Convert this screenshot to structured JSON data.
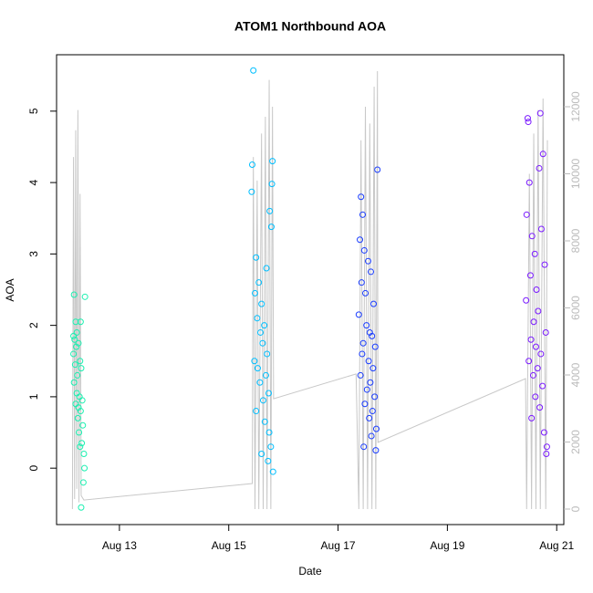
{
  "chart_data": {
    "type": "scatter",
    "title": "ATOM1 Northbound AOA",
    "x_label": "Date",
    "y_label": "AOA",
    "xlim": [
      11.85,
      21.13
    ],
    "xticks": [
      {
        "value": 13,
        "label": "Aug 13"
      },
      {
        "value": 15,
        "label": "Aug 15"
      },
      {
        "value": 17,
        "label": "Aug 17"
      },
      {
        "value": 19,
        "label": "Aug 19"
      },
      {
        "value": 21,
        "label": "Aug 21"
      }
    ],
    "ylim": [
      -0.79,
      5.79
    ],
    "yticks": [
      0,
      1,
      2,
      3,
      4,
      5
    ],
    "y2lim": [
      -463,
      13551
    ],
    "y2ticks": [
      0,
      2000,
      4000,
      6000,
      8000,
      10000,
      12000
    ],
    "series": [
      {
        "type": "line",
        "axis": "y2",
        "color": "#c8c8c8",
        "x": [
          12.14,
          12.16,
          12.18,
          12.2,
          12.22,
          12.24,
          12.26,
          12.28,
          12.3,
          12.35,
          15.43,
          15.45,
          15.48,
          15.52,
          15.55,
          15.6,
          15.63,
          15.67,
          15.7,
          15.74,
          15.77,
          15.8,
          15.82,
          17.33,
          17.38,
          17.42,
          17.46,
          17.5,
          17.54,
          17.58,
          17.62,
          17.66,
          17.69,
          17.72,
          17.73,
          20.43,
          20.45,
          20.5,
          20.54,
          20.58,
          20.62,
          20.66,
          20.7,
          20.75,
          20.8,
          20.83
        ],
        "values": [
          0,
          10500,
          300,
          11300,
          600,
          11900,
          200,
          9400,
          400,
          270,
          760,
          10500,
          0,
          9800,
          0,
          11200,
          0,
          11700,
          0,
          12800,
          0,
          12000,
          3290,
          4030,
          0,
          11000,
          0,
          12000,
          0,
          11500,
          0,
          12600,
          0,
          13060,
          1990,
          3890,
          0,
          10000,
          0,
          11200,
          0,
          11900,
          0,
          12245,
          0,
          11000
        ]
      },
      {
        "type": "scatter",
        "color": "#1AF0B0",
        "x": [
          12.17,
          12.2,
          12.22,
          12.18,
          12.25,
          12.21,
          12.16,
          12.28,
          12.19,
          12.3,
          12.23,
          12.17,
          12.27,
          12.32,
          12.2,
          12.29,
          12.24,
          12.33,
          12.26,
          12.31,
          12.28,
          12.35,
          12.36,
          12.34,
          12.3,
          12.16,
          12.37,
          12.22,
          12.25,
          12.29
        ],
        "values": [
          2.43,
          2.05,
          1.9,
          1.8,
          1.75,
          1.7,
          1.6,
          1.5,
          1.45,
          1.4,
          1.3,
          1.2,
          1.0,
          0.95,
          0.9,
          0.8,
          0.7,
          0.6,
          0.5,
          0.35,
          0.3,
          0.2,
          0.0,
          -0.2,
          -0.55,
          1.85,
          2.4,
          1.05,
          0.85,
          2.05
        ]
      },
      {
        "type": "scatter",
        "color": "#00BFFF",
        "x": [
          15.45,
          15.43,
          15.42,
          15.8,
          15.79,
          15.75,
          15.78,
          15.5,
          15.55,
          15.48,
          15.6,
          15.52,
          15.65,
          15.58,
          15.62,
          15.7,
          15.47,
          15.53,
          15.68,
          15.57,
          15.73,
          15.63,
          15.5,
          15.66,
          15.74,
          15.77,
          15.6,
          15.72,
          15.69,
          15.81
        ],
        "values": [
          5.57,
          4.25,
          3.87,
          4.3,
          3.98,
          3.6,
          3.38,
          2.95,
          2.6,
          2.45,
          2.3,
          2.1,
          2.0,
          1.9,
          1.75,
          1.6,
          1.5,
          1.4,
          1.3,
          1.2,
          1.05,
          0.95,
          0.8,
          0.65,
          0.5,
          0.3,
          0.2,
          0.1,
          2.8,
          -0.05
        ]
      },
      {
        "type": "scatter",
        "color": "#1A3DFF",
        "x": [
          17.42,
          17.45,
          17.72,
          17.4,
          17.48,
          17.55,
          17.6,
          17.43,
          17.5,
          17.65,
          17.38,
          17.52,
          17.58,
          17.62,
          17.46,
          17.68,
          17.44,
          17.56,
          17.64,
          17.41,
          17.59,
          17.53,
          17.67,
          17.49,
          17.63,
          17.57,
          17.7,
          17.61,
          17.47,
          17.69
        ],
        "values": [
          3.8,
          3.55,
          4.18,
          3.2,
          3.05,
          2.9,
          2.75,
          2.6,
          2.45,
          2.3,
          2.15,
          2.0,
          1.9,
          1.85,
          1.75,
          1.7,
          1.6,
          1.5,
          1.4,
          1.3,
          1.2,
          1.1,
          1.0,
          0.9,
          0.8,
          0.7,
          0.55,
          0.45,
          0.3,
          0.25
        ]
      },
      {
        "type": "scatter",
        "color": "#7A1AFF",
        "x": [
          20.47,
          20.48,
          20.7,
          20.75,
          20.68,
          20.5,
          20.45,
          20.72,
          20.55,
          20.6,
          20.78,
          20.52,
          20.63,
          20.44,
          20.66,
          20.58,
          20.8,
          20.53,
          20.62,
          20.71,
          20.49,
          20.65,
          20.57,
          20.74,
          20.61,
          20.69,
          20.54,
          20.77,
          20.82,
          20.81
        ],
        "values": [
          4.9,
          4.85,
          4.97,
          4.4,
          4.2,
          4.0,
          3.55,
          3.35,
          3.25,
          3.0,
          2.85,
          2.7,
          2.5,
          2.35,
          2.2,
          2.05,
          1.9,
          1.8,
          1.7,
          1.6,
          1.5,
          1.4,
          1.3,
          1.15,
          1.0,
          0.85,
          0.7,
          0.5,
          0.3,
          0.2
        ]
      }
    ]
  }
}
